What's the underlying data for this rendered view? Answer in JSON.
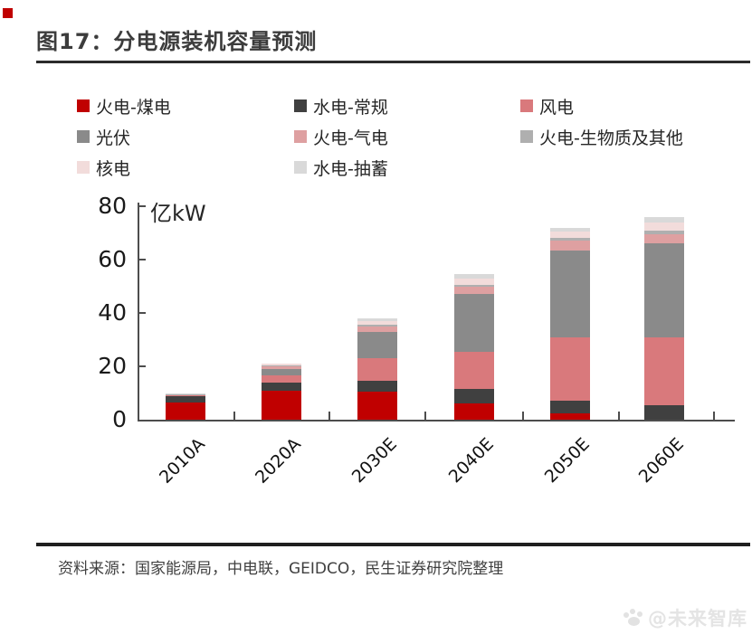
{
  "page": {
    "title": "图17：分电源装机容量预测",
    "source_line": "资料来源：国家能源局，中电联，GEIDCO，民生证券研究院整理",
    "watermark_text": "@未来智库",
    "watermark_icon": "paw-icon",
    "accent_red": "#C00000",
    "rule_color": "#2B2B2B"
  },
  "chart_data": {
    "type": "bar",
    "stacked": true,
    "title": "分电源装机容量预测",
    "unit_label": "亿kW",
    "ylabel": "亿kW",
    "xlabel": "",
    "ylim": [
      0,
      80
    ],
    "yticks": [
      0,
      20,
      40,
      60,
      80
    ],
    "grid": false,
    "legend_position": "top",
    "categories": [
      "2010A",
      "2020A",
      "2030E",
      "2040E",
      "2050E",
      "2060E"
    ],
    "series": [
      {
        "name": "火电-煤电",
        "color": "#C00000",
        "values": [
          6.5,
          10.8,
          10.5,
          6.0,
          2.5,
          0.0
        ]
      },
      {
        "name": "水电-常规",
        "color": "#404040",
        "values": [
          2.2,
          3.0,
          4.0,
          5.5,
          4.5,
          5.5
        ]
      },
      {
        "name": "风电",
        "color": "#D9797C",
        "values": [
          0.3,
          2.8,
          8.5,
          14.0,
          24.0,
          25.5
        ]
      },
      {
        "name": "光伏",
        "color": "#8A8A8A",
        "values": [
          0.0,
          2.5,
          10.0,
          21.5,
          32.5,
          35.0
        ]
      },
      {
        "name": "火电-气电",
        "color": "#DEA0A1",
        "values": [
          0.3,
          1.0,
          2.0,
          3.0,
          3.5,
          3.5
        ]
      },
      {
        "name": "火电-生物质及其他",
        "color": "#AFAFAF",
        "values": [
          0.1,
          0.3,
          0.5,
          0.5,
          1.0,
          1.5
        ]
      },
      {
        "name": "核电",
        "color": "#F2DCDB",
        "values": [
          0.1,
          0.5,
          1.5,
          2.5,
          2.5,
          3.0
        ]
      },
      {
        "name": "水电-抽蓄",
        "color": "#D9D9D9",
        "values": [
          0.2,
          0.3,
          1.0,
          1.5,
          1.5,
          2.0
        ]
      }
    ],
    "totals": [
      9.7,
      21.2,
      38.0,
      54.5,
      72.0,
      76.0
    ]
  }
}
